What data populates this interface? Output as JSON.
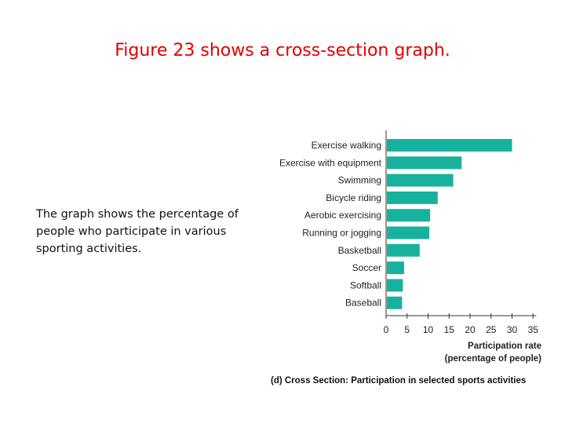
{
  "slide": {
    "title": "Figure 23 shows a cross-section graph.",
    "description": "The graph shows the percentage of people who participate in various sporting activities."
  },
  "chart_data": {
    "type": "bar",
    "orientation": "horizontal",
    "categories": [
      "Exercise walking",
      "Exercise with equipment",
      "Swimming",
      "Bicycle riding",
      "Aerobic exercising",
      "Running or jogging",
      "Basketball",
      "Soccer",
      "Softball",
      "Baseball"
    ],
    "values": [
      30,
      18,
      16,
      12.3,
      10.5,
      10.3,
      8,
      4.3,
      4,
      3.8
    ],
    "xticks": [
      0,
      5,
      10,
      15,
      20,
      25,
      30,
      35
    ],
    "xlim": [
      0,
      35
    ],
    "xlabel_line1": "Participation rate",
    "xlabel_line2": "(percentage of people)",
    "caption": "(d) Cross Section: Participation in selected sports activities",
    "bar_color": "#17b29e",
    "grid": false
  }
}
